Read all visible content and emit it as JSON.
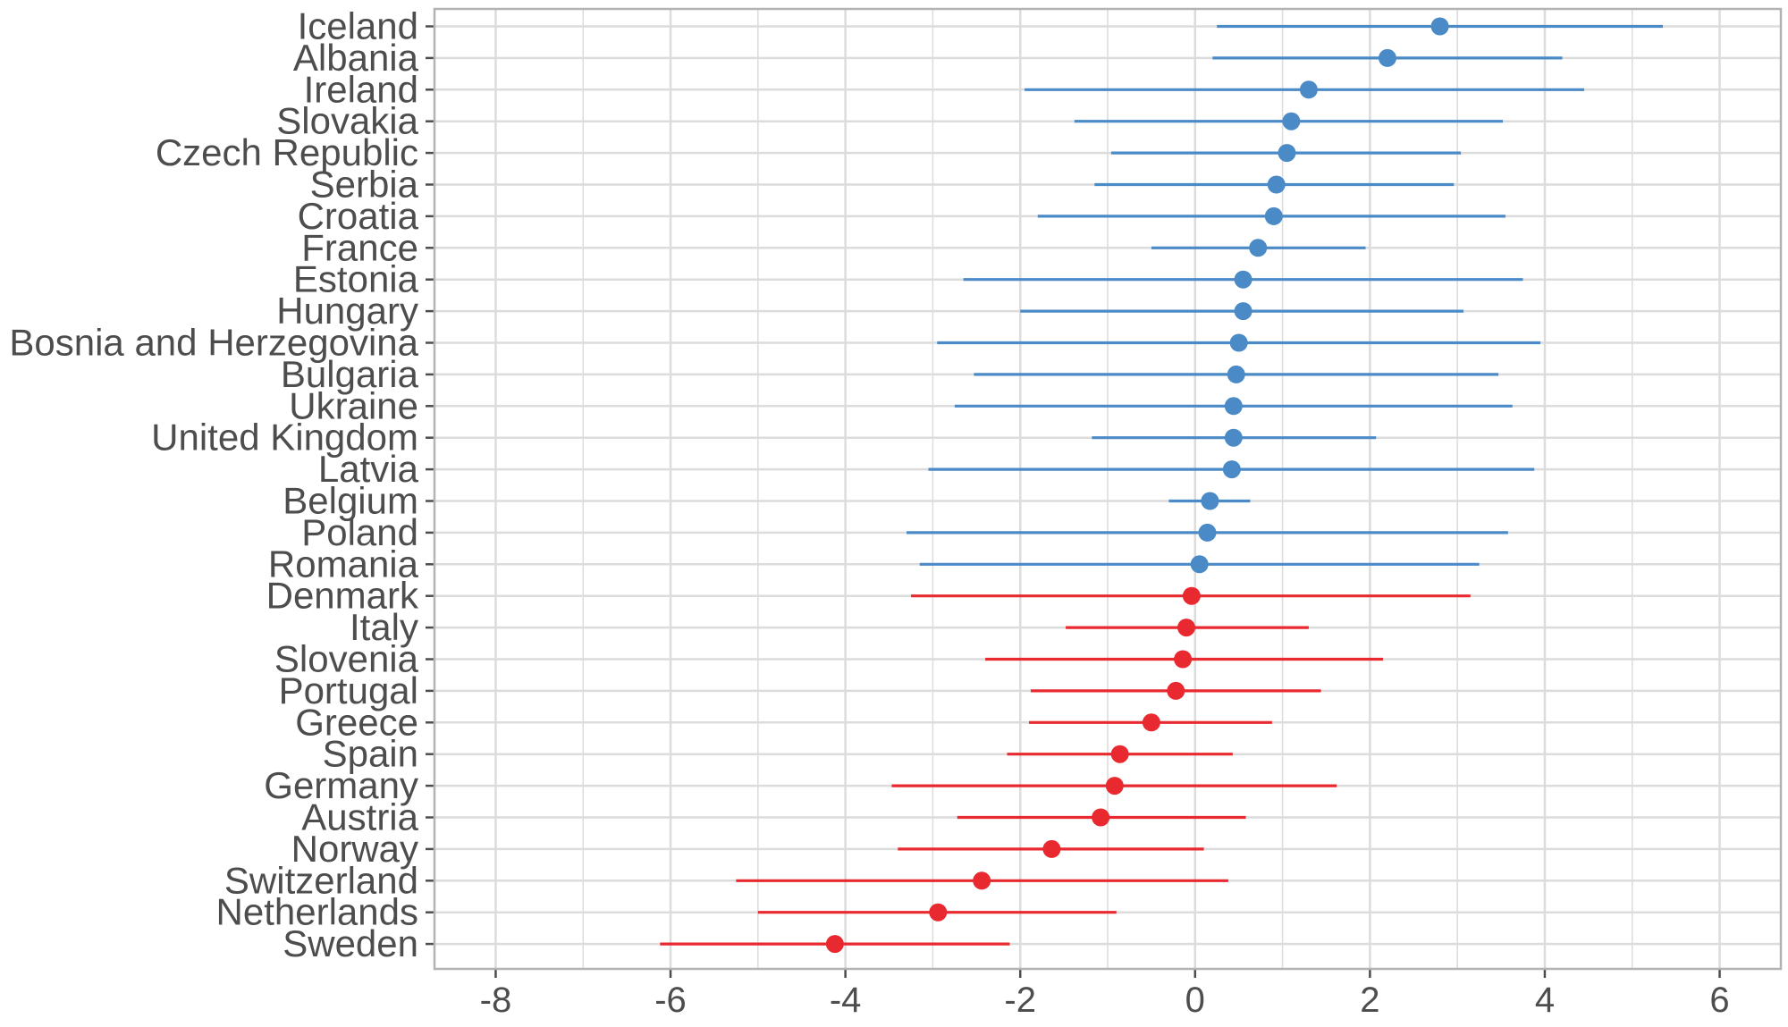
{
  "chart_data": {
    "type": "scatter",
    "subtype": "dot-and-interval (forest plot)",
    "title": "",
    "xlabel": "",
    "ylabel": "",
    "xlim": [
      -8.7,
      6.7
    ],
    "x_ticks": [
      -8,
      -6,
      -4,
      -2,
      0,
      2,
      4,
      6
    ],
    "x_tick_labels": [
      "-8",
      "-6",
      "-4",
      "-2",
      "0",
      "2",
      "4",
      "6"
    ],
    "grid": true,
    "legend": "none",
    "colors": {
      "positive": "#4a8ac6",
      "negative": "#e8292f",
      "grid": "#dcdcdc",
      "panel_border": "#b3b3b3"
    },
    "rows": [
      {
        "country": "Iceland",
        "estimate": 2.8,
        "lower": 0.25,
        "upper": 5.35
      },
      {
        "country": "Albania",
        "estimate": 2.2,
        "lower": 0.2,
        "upper": 4.2
      },
      {
        "country": "Ireland",
        "estimate": 1.3,
        "lower": -1.95,
        "upper": 4.45
      },
      {
        "country": "Slovakia",
        "estimate": 1.1,
        "lower": -1.38,
        "upper": 3.52
      },
      {
        "country": "Czech Republic",
        "estimate": 1.05,
        "lower": -0.96,
        "upper": 3.04
      },
      {
        "country": "Serbia",
        "estimate": 0.93,
        "lower": -1.15,
        "upper": 2.96
      },
      {
        "country": "Croatia",
        "estimate": 0.9,
        "lower": -1.8,
        "upper": 3.55
      },
      {
        "country": "France",
        "estimate": 0.72,
        "lower": -0.5,
        "upper": 1.95
      },
      {
        "country": "Estonia",
        "estimate": 0.55,
        "lower": -2.65,
        "upper": 3.75
      },
      {
        "country": "Hungary",
        "estimate": 0.55,
        "lower": -2.0,
        "upper": 3.07
      },
      {
        "country": "Bosnia and Herzegovina",
        "estimate": 0.5,
        "lower": -2.95,
        "upper": 3.95
      },
      {
        "country": "Bulgaria",
        "estimate": 0.47,
        "lower": -2.53,
        "upper": 3.47
      },
      {
        "country": "Ukraine",
        "estimate": 0.44,
        "lower": -2.75,
        "upper": 3.63
      },
      {
        "country": "United Kingdom",
        "estimate": 0.44,
        "lower": -1.18,
        "upper": 2.07
      },
      {
        "country": "Latvia",
        "estimate": 0.42,
        "lower": -3.05,
        "upper": 3.88
      },
      {
        "country": "Belgium",
        "estimate": 0.17,
        "lower": -0.3,
        "upper": 0.63
      },
      {
        "country": "Poland",
        "estimate": 0.14,
        "lower": -3.3,
        "upper": 3.58
      },
      {
        "country": "Romania",
        "estimate": 0.05,
        "lower": -3.15,
        "upper": 3.25
      },
      {
        "country": "Denmark",
        "estimate": -0.04,
        "lower": -3.25,
        "upper": 3.15
      },
      {
        "country": "Italy",
        "estimate": -0.1,
        "lower": -1.48,
        "upper": 1.3
      },
      {
        "country": "Slovenia",
        "estimate": -0.14,
        "lower": -2.4,
        "upper": 2.15
      },
      {
        "country": "Portugal",
        "estimate": -0.22,
        "lower": -1.88,
        "upper": 1.44
      },
      {
        "country": "Greece",
        "estimate": -0.5,
        "lower": -1.9,
        "upper": 0.88
      },
      {
        "country": "Spain",
        "estimate": -0.86,
        "lower": -2.15,
        "upper": 0.43
      },
      {
        "country": "Germany",
        "estimate": -0.92,
        "lower": -3.47,
        "upper": 1.62
      },
      {
        "country": "Austria",
        "estimate": -1.08,
        "lower": -2.72,
        "upper": 0.58
      },
      {
        "country": "Norway",
        "estimate": -1.64,
        "lower": -3.4,
        "upper": 0.1
      },
      {
        "country": "Switzerland",
        "estimate": -2.44,
        "lower": -5.25,
        "upper": 0.38
      },
      {
        "country": "Netherlands",
        "estimate": -2.94,
        "lower": -5.0,
        "upper": -0.9
      },
      {
        "country": "Sweden",
        "estimate": -4.12,
        "lower": -6.12,
        "upper": -2.12
      }
    ]
  }
}
